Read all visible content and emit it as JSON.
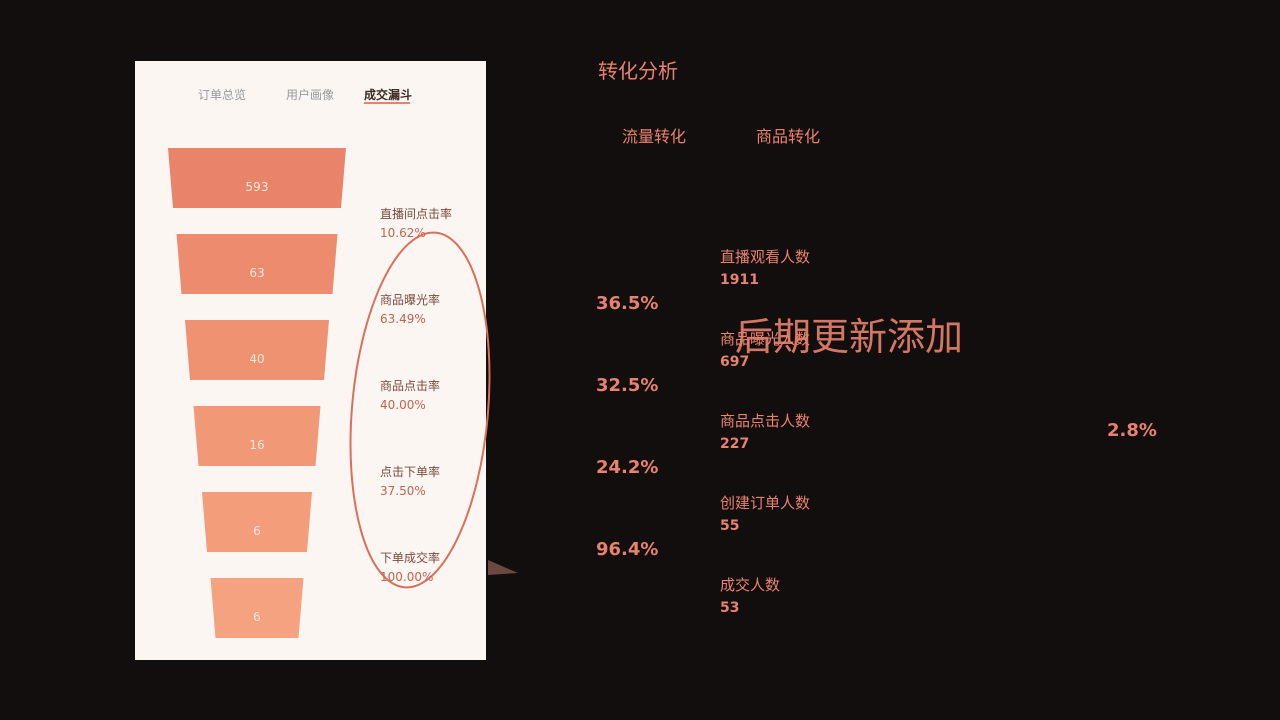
{
  "phone": {
    "tabs": [
      "订单总览",
      "用户画像",
      "成交漏斗"
    ],
    "funnel_values": [
      "593",
      "63",
      "40",
      "16",
      "6",
      "6"
    ],
    "rates": [
      {
        "label": "直播间点击率",
        "value": "10.62%"
      },
      {
        "label": "商品曝光率",
        "value": "63.49%"
      },
      {
        "label": "商品点击率",
        "value": "40.00%"
      },
      {
        "label": "点击下单率",
        "value": "37.50%"
      },
      {
        "label": "下单成交率",
        "value": "100.00%"
      }
    ]
  },
  "panel": {
    "title": "转化分析",
    "tabs": [
      "流量转化",
      "商品转化"
    ],
    "steps": [
      {
        "label": "直播观看人数",
        "value": "1911"
      },
      {
        "label": "商品曝光人数",
        "value": "697"
      },
      {
        "label": "商品点击人数",
        "value": "227"
      },
      {
        "label": "创建订单人数",
        "value": "55"
      },
      {
        "label": "成交人数",
        "value": "53"
      }
    ],
    "rates": [
      "36.5%",
      "32.5%",
      "24.2%",
      "96.4%"
    ],
    "overall_rate": "2.8%"
  },
  "watermark": "后期更新添加"
}
